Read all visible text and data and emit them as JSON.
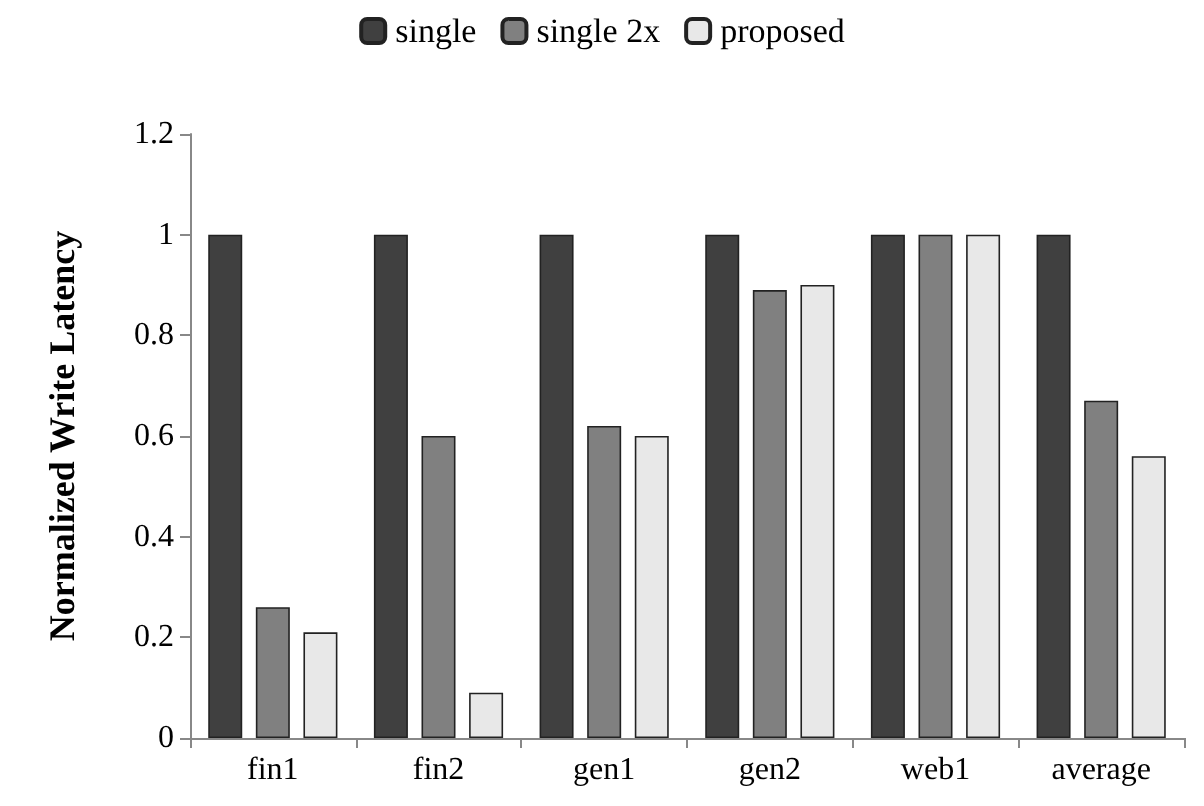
{
  "chart_data": {
    "type": "bar",
    "ylabel": "Normalized Write Latency",
    "categories": [
      "fin1",
      "fin2",
      "gen1",
      "gen2",
      "web1",
      "average"
    ],
    "series": [
      {
        "name": "single",
        "color": "#404040",
        "values": [
          1,
          1,
          1,
          1,
          1,
          1
        ]
      },
      {
        "name": "single 2x",
        "color": "#808080",
        "values": [
          0.26,
          0.6,
          0.62,
          0.89,
          1,
          0.67
        ]
      },
      {
        "name": "proposed",
        "color": "#e8e8e8",
        "values": [
          0.21,
          0.09,
          0.6,
          0.9,
          1,
          0.56
        ]
      }
    ],
    "ylim": [
      0,
      1.2
    ],
    "yticks": [
      0,
      0.2,
      0.4,
      0.6,
      0.8,
      1,
      1.2
    ],
    "legend": "top",
    "grid": false
  }
}
